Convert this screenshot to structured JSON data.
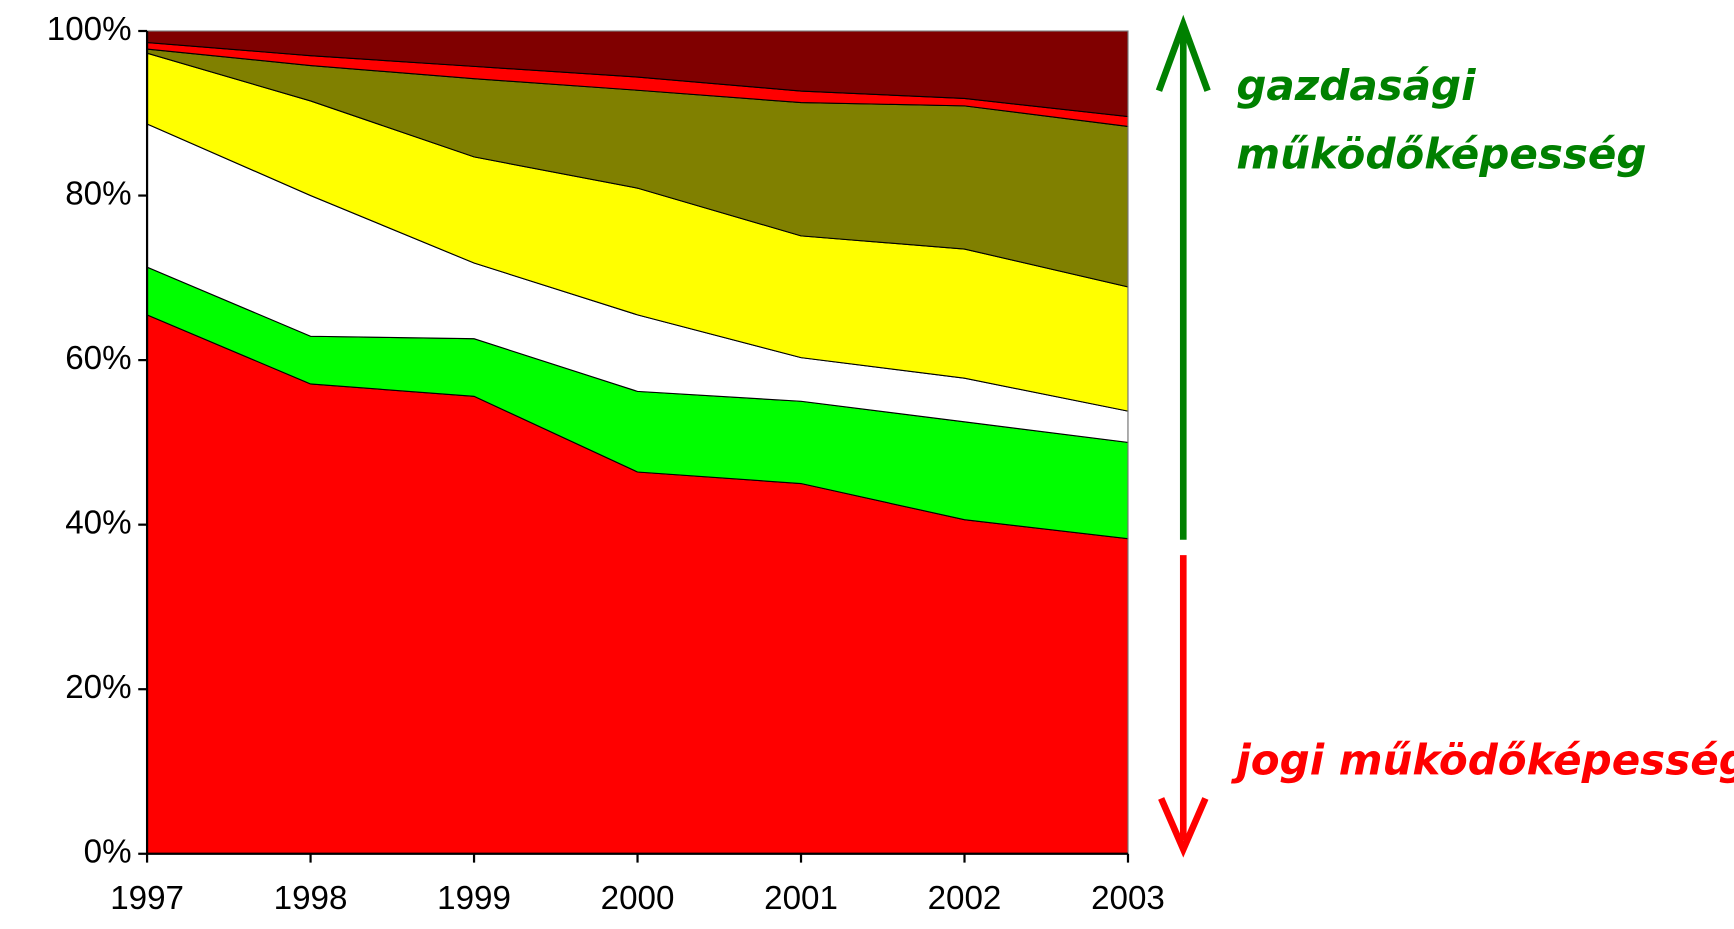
{
  "chart_data": {
    "type": "stacked_area",
    "x": [
      1997,
      1998,
      1999,
      2000,
      2001,
      2002,
      2003
    ],
    "xlim": [
      1997,
      2003
    ],
    "xticks": [
      1997,
      1998,
      1999,
      2000,
      2001,
      2002,
      2003
    ],
    "ylim": [
      0,
      100
    ],
    "yticks": [
      {
        "value": 0,
        "label": "0%"
      },
      {
        "value": 20,
        "label": "20%"
      },
      {
        "value": 40,
        "label": "40%"
      },
      {
        "value": 60,
        "label": "60%"
      },
      {
        "value": 80,
        "label": "80%"
      },
      {
        "value": 100,
        "label": "100%"
      }
    ],
    "series": [
      {
        "color": "#ff0000",
        "values": [
          65.5,
          57.1,
          55.6,
          46.4,
          45.0,
          40.6,
          38.3
        ]
      },
      {
        "color": "#00ff00",
        "values": [
          5.8,
          5.8,
          7.0,
          9.8,
          10.0,
          11.9,
          11.7
        ]
      },
      {
        "color": "#ffffff",
        "values": [
          17.4,
          17.1,
          9.2,
          9.3,
          5.3,
          5.3,
          3.8
        ]
      },
      {
        "color": "#ffff00",
        "values": [
          8.6,
          11.5,
          12.9,
          15.4,
          14.8,
          15.7,
          15.1
        ]
      },
      {
        "color": "#808000",
        "values": [
          0.5,
          4.3,
          9.5,
          11.9,
          16.2,
          17.4,
          19.5
        ]
      },
      {
        "color": "#ff0000",
        "values": [
          0.8,
          1.2,
          1.5,
          1.6,
          1.4,
          0.9,
          1.2
        ]
      },
      {
        "color": "#800000",
        "values": [
          1.4,
          3.0,
          4.3,
          5.6,
          7.3,
          8.2,
          10.4
        ]
      }
    ],
    "annotations": [
      {
        "text": [
          "gazdasági",
          "működőképesség"
        ],
        "color": "#008000"
      },
      {
        "text": [
          "jogi működőképesség"
        ],
        "color": "#ff0000"
      }
    ]
  }
}
